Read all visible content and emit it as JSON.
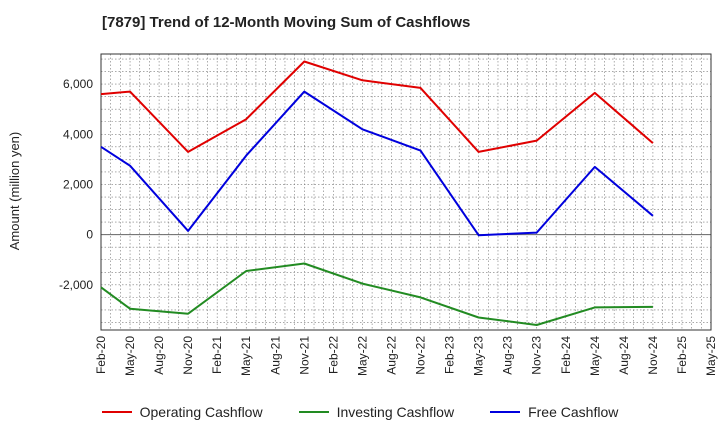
{
  "chart_data": {
    "type": "line",
    "title": "[7879]  Trend of 12-Month Moving Sum of Cashflows",
    "ylabel": "Amount (million yen)",
    "xlabel": "",
    "ylim": [
      -3800,
      7200
    ],
    "yticks": [
      -2000,
      0,
      2000,
      4000,
      6000
    ],
    "ytick_labels": [
      "-2,000",
      "0",
      "2,000",
      "4,000",
      "6,000"
    ],
    "categories": [
      "Feb-20",
      "May-20",
      "Aug-20",
      "Nov-20",
      "Feb-21",
      "May-21",
      "Aug-21",
      "Nov-21",
      "Feb-22",
      "May-22",
      "Aug-22",
      "Nov-22",
      "Feb-23",
      "May-23",
      "Aug-23",
      "Nov-23",
      "Feb-24",
      "May-24",
      "Aug-24",
      "Nov-24",
      "Feb-25",
      "May-25"
    ],
    "grid": true,
    "legend_position": "bottom",
    "series": [
      {
        "name": "Operating Cashflow",
        "color": "#e00000",
        "points": [
          [
            "Feb-20",
            5600
          ],
          [
            "May-20",
            5700
          ],
          [
            "Nov-20",
            3300
          ],
          [
            "May-21",
            4600
          ],
          [
            "Nov-21",
            6900
          ],
          [
            "May-22",
            6150
          ],
          [
            "Nov-22",
            5850
          ],
          [
            "May-23",
            3300
          ],
          [
            "Nov-23",
            3750
          ],
          [
            "May-24",
            5650
          ],
          [
            "Nov-24",
            3650
          ]
        ]
      },
      {
        "name": "Investing Cashflow",
        "color": "#228b22",
        "points": [
          [
            "Feb-20",
            -2100
          ],
          [
            "May-20",
            -2950
          ],
          [
            "Nov-20",
            -3150
          ],
          [
            "May-21",
            -1450
          ],
          [
            "Nov-21",
            -1150
          ],
          [
            "May-22",
            -1950
          ],
          [
            "Nov-22",
            -2500
          ],
          [
            "May-23",
            -3300
          ],
          [
            "Nov-23",
            -3600
          ],
          [
            "May-24",
            -2900
          ],
          [
            "Nov-24",
            -2880
          ]
        ]
      },
      {
        "name": "Free Cashflow",
        "color": "#0000dd",
        "points": [
          [
            "Feb-20",
            3500
          ],
          [
            "May-20",
            2750
          ],
          [
            "Nov-20",
            150
          ],
          [
            "May-21",
            3150
          ],
          [
            "Nov-21",
            5700
          ],
          [
            "May-22",
            4200
          ],
          [
            "Nov-22",
            3350
          ],
          [
            "May-23",
            -20
          ],
          [
            "Nov-23",
            80
          ],
          [
            "May-24",
            2700
          ],
          [
            "Nov-24",
            750
          ]
        ]
      }
    ]
  }
}
